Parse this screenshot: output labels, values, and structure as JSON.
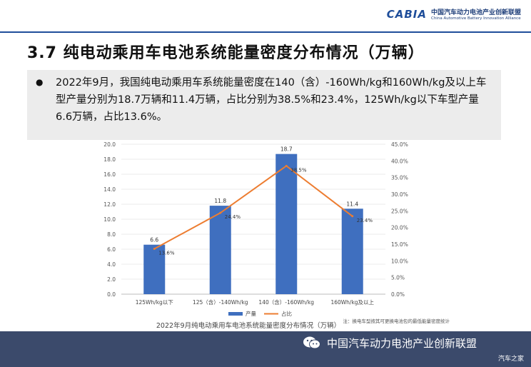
{
  "header": {
    "logo_mark": "CABIA",
    "logo_cn": "中国汽车动力电池产业创新联盟",
    "logo_en": "China Automotive Battery Innovation Alliance"
  },
  "slide": {
    "title": "3.7 纯电动乘用车电池系统能量密度分布情况（万辆）",
    "bullet": "2022年9月，我国纯电动乘用车系统能量密度在140（含）-160Wh/kg和160Wh/kg及以上车型产量分别为18.7万辆和11.4万辆，占比分别为38.5%和23.4%，125Wh/kg以下车型产量6.6万辆，占比13.6%。"
  },
  "chart_data": {
    "type": "bar",
    "title": "2022年9月纯电动乘用车电池系统能量密度分布情况（万辆）",
    "categories": [
      "125Wh/kg以下",
      "125（含）-140Wh/kg",
      "140（含）-160Wh/kg",
      "160Wh/kg及以上"
    ],
    "series": [
      {
        "name": "产量",
        "type": "bar",
        "axis": "left",
        "values": [
          6.6,
          11.8,
          18.7,
          11.4
        ],
        "labels": [
          "6.6",
          "11.8",
          "18.7",
          "11.4"
        ],
        "color": "#3f6fbf"
      },
      {
        "name": "占比",
        "type": "line",
        "axis": "right",
        "values": [
          13.6,
          24.4,
          38.5,
          23.4
        ],
        "labels": [
          "13.6%",
          "24.4%",
          "38.5%",
          "23.4%"
        ],
        "color": "#ed7d31"
      }
    ],
    "ylim_left": [
      0,
      20
    ],
    "left_ticks": [
      "0.0",
      "2.0",
      "4.0",
      "6.0",
      "8.0",
      "10.0",
      "12.0",
      "14.0",
      "16.0",
      "18.0",
      "20.0"
    ],
    "ylim_right": [
      0,
      45
    ],
    "right_ticks": [
      "0.0%",
      "5.0%",
      "10.0%",
      "15.0%",
      "20.0%",
      "25.0%",
      "30.0%",
      "35.0%",
      "40.0%",
      "45.0%"
    ],
    "note": "注：换电车型按其可更换电池包的最低能量密度统计",
    "legend_position": "bottom"
  },
  "footer": {
    "text": "中国汽车动力电池产业创新联盟",
    "watermark": "汽车之家",
    "icon": "wechat-icon"
  }
}
